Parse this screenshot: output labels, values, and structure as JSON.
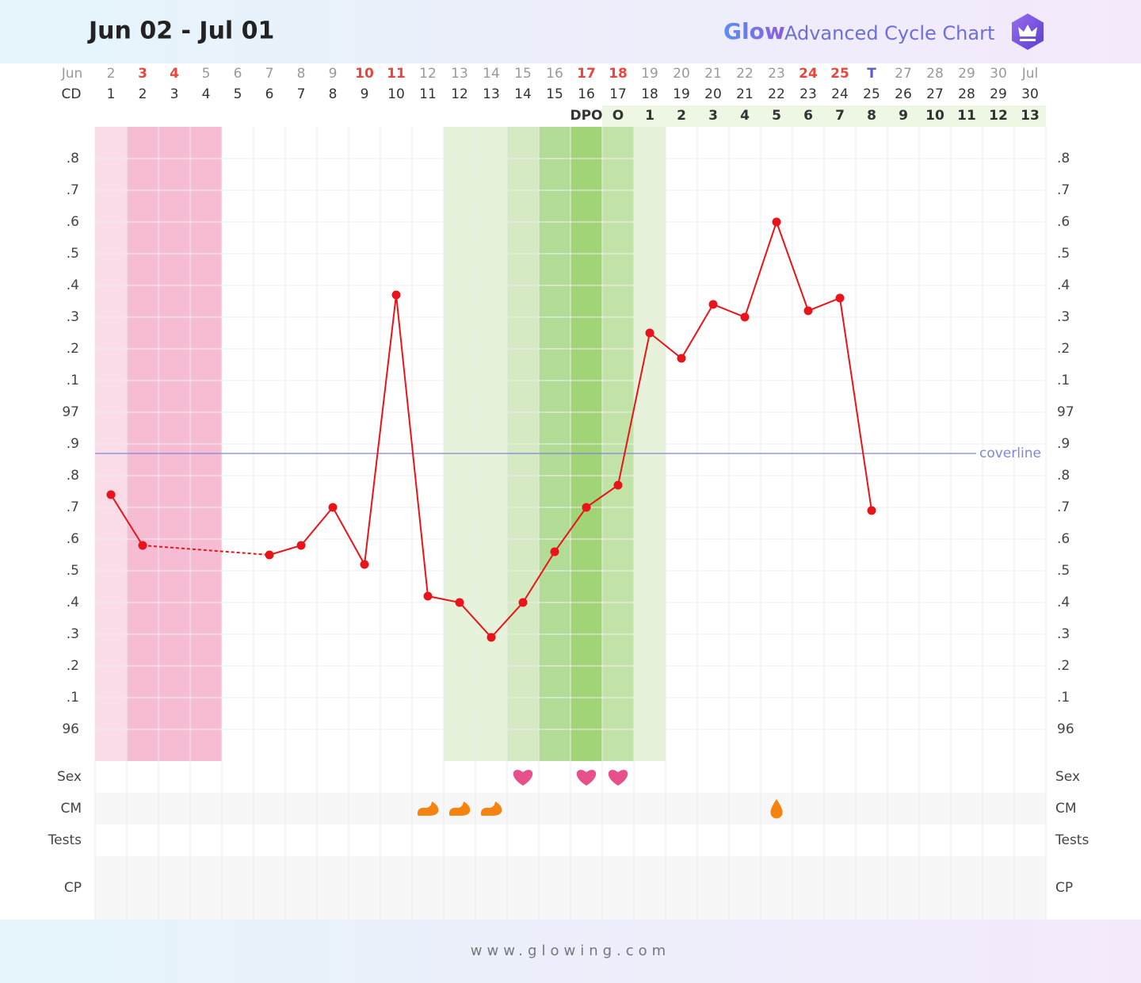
{
  "header": {
    "title": "Jun 02 - Jul 01",
    "brand": "Glow",
    "subtitle": "Advanced Cycle Chart"
  },
  "footer": "www.glowing.com",
  "chart_data": {
    "type": "line",
    "month_label": "Jun",
    "dates": [
      "2",
      "3",
      "4",
      "5",
      "6",
      "7",
      "8",
      "9",
      "10",
      "11",
      "12",
      "13",
      "14",
      "15",
      "16",
      "17",
      "18",
      "19",
      "20",
      "21",
      "22",
      "23",
      "24",
      "25",
      "T",
      "27",
      "28",
      "29",
      "30",
      "Jul"
    ],
    "date_colors": [
      null,
      "#e8473e",
      "#e8473e",
      null,
      null,
      null,
      null,
      null,
      "#e8473e",
      "#e8473e",
      null,
      null,
      null,
      null,
      null,
      "#e8473e",
      "#e8473e",
      null,
      null,
      null,
      null,
      null,
      "#e8473e",
      "#e8473e",
      "#5a5fc8",
      null,
      null,
      null,
      null,
      null
    ],
    "cd_label": "CD",
    "categories": [
      1,
      2,
      3,
      4,
      5,
      6,
      7,
      8,
      9,
      10,
      11,
      12,
      13,
      14,
      15,
      16,
      17,
      18,
      19,
      20,
      21,
      22,
      23,
      24,
      25,
      26,
      27,
      28,
      29,
      30
    ],
    "dpo": [
      null,
      null,
      null,
      null,
      null,
      null,
      null,
      null,
      null,
      null,
      null,
      null,
      null,
      null,
      null,
      "DPO",
      "O",
      1,
      2,
      3,
      4,
      5,
      6,
      7,
      8,
      9,
      10,
      11,
      12,
      13
    ],
    "dpo_band_color": "#eef6e4",
    "values": [
      96.74,
      96.58,
      null,
      null,
      null,
      96.55,
      96.58,
      96.7,
      96.52,
      97.37,
      96.42,
      96.4,
      96.29,
      96.4,
      96.56,
      96.7,
      96.77,
      97.25,
      97.17,
      97.34,
      97.3,
      97.6,
      97.32,
      97.36,
      96.69,
      null,
      null,
      null,
      null,
      null
    ],
    "color": "#e8141a",
    "ylim": [
      95.9,
      97.9
    ],
    "yticks": [
      {
        "value": 97.8,
        "label": ".8"
      },
      {
        "value": 97.7,
        "label": ".7"
      },
      {
        "value": 97.6,
        "label": ".6"
      },
      {
        "value": 97.5,
        "label": ".5"
      },
      {
        "value": 97.4,
        "label": ".4"
      },
      {
        "value": 97.3,
        "label": ".3"
      },
      {
        "value": 97.2,
        "label": ".2"
      },
      {
        "value": 97.1,
        "label": ".1"
      },
      97,
      {
        "value": 96.9,
        "label": ".9"
      },
      {
        "value": 96.8,
        "label": ".8"
      },
      {
        "value": 96.7,
        "label": ".7"
      },
      {
        "value": 96.6,
        "label": ".6"
      },
      {
        "value": 96.5,
        "label": ".5"
      },
      {
        "value": 96.4,
        "label": ".4"
      },
      {
        "value": 96.3,
        "label": ".3"
      },
      {
        "value": 96.2,
        "label": ".2"
      },
      {
        "value": 96.1,
        "label": ".1"
      },
      96
    ],
    "grid": true,
    "coverline": {
      "value": 96.87,
      "label": "coverline",
      "color": "#7f86d9"
    },
    "band_colors": [
      "#fadbe8",
      "#f5bcd4",
      "#f5bcd4",
      "#f5bcd4",
      null,
      null,
      null,
      null,
      null,
      null,
      null,
      "#e6f2d9",
      "#e6f2d9",
      "#d5eac3",
      "#b3dd97",
      "#a1d377",
      "#c1e3a8",
      "#e6f2d9",
      null,
      null,
      null,
      null,
      null,
      null,
      null,
      null,
      null,
      null,
      null,
      null
    ],
    "symbol_rows": [
      {
        "label": "Sex",
        "marks": [
          {
            "day": 13,
            "icon": "heart"
          },
          {
            "day": 15,
            "icon": "heart"
          },
          {
            "day": 16,
            "icon": "heart"
          }
        ]
      },
      {
        "label": "CM",
        "marks": [
          {
            "day": 10,
            "icon": "creamy"
          },
          {
            "day": 11,
            "icon": "creamy"
          },
          {
            "day": 12,
            "icon": "creamy"
          },
          {
            "day": 21,
            "icon": "drop"
          }
        ]
      },
      {
        "label": "Tests",
        "marks": []
      },
      {
        "label": "CP",
        "marks": []
      }
    ]
  }
}
